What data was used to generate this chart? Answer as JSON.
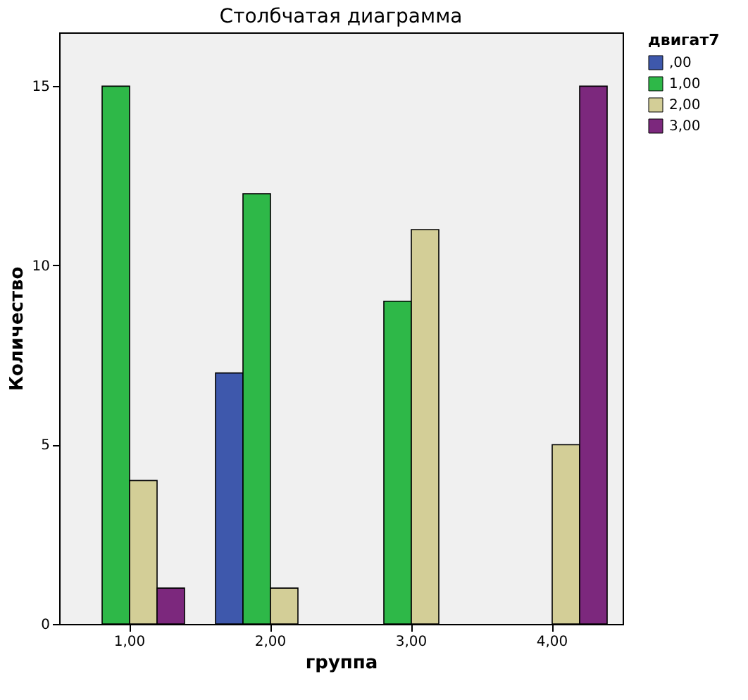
{
  "chart_data": {
    "type": "bar",
    "title": "Столбчатая диаграмма",
    "xlabel": "группа",
    "ylabel": "Количество",
    "legend_title": "двигат7",
    "legend": "top right",
    "grid": false,
    "categories": [
      "1,00",
      "2,00",
      "3,00",
      "4,00"
    ],
    "series": [
      {
        "name": ",00",
        "color": "#3e58ac",
        "values": [
          null,
          7,
          null,
          null
        ]
      },
      {
        "name": "1,00",
        "color": "#2eb848",
        "values": [
          15,
          12,
          9,
          null
        ]
      },
      {
        "name": "2,00",
        "color": "#d3ce97",
        "values": [
          4,
          1,
          11,
          5
        ]
      },
      {
        "name": "3,00",
        "color": "#7c287d",
        "values": [
          1,
          null,
          null,
          15
        ]
      }
    ],
    "ylim": [
      0,
      16.5
    ],
    "yticks": [
      0,
      5,
      10,
      15
    ]
  }
}
